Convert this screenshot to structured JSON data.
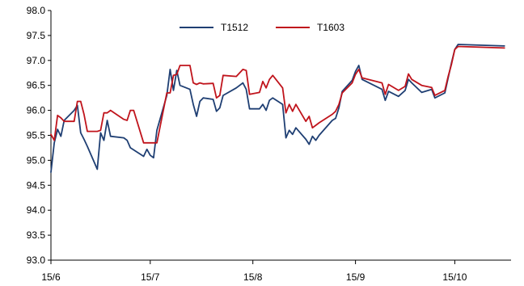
{
  "chart_data": {
    "type": "line",
    "title": "",
    "xlabel": "",
    "ylabel": "",
    "ylim": [
      93.0,
      98.0
    ],
    "yticks": [
      "93.0",
      "93.5",
      "94.0",
      "94.5",
      "95.0",
      "95.5",
      "96.0",
      "96.5",
      "97.0",
      "97.5",
      "98.0"
    ],
    "xlim": [
      "2015-06-01",
      "2015-10-18"
    ],
    "xticks": [
      {
        "date": "2015-06-01",
        "label": "15/6"
      },
      {
        "date": "2015-07-01",
        "label": "15/7"
      },
      {
        "date": "2015-08-01",
        "label": "15/8"
      },
      {
        "date": "2015-09-01",
        "label": "15/9"
      },
      {
        "date": "2015-10-01",
        "label": "15/10"
      }
    ],
    "grid": false,
    "legend": "top-center",
    "series": [
      {
        "name": "T1512",
        "color": "#1F3F73",
        "points": [
          [
            "2015-06-01",
            94.76
          ],
          [
            "2015-06-02",
            95.35
          ],
          [
            "2015-06-03",
            95.62
          ],
          [
            "2015-06-04",
            95.48
          ],
          [
            "2015-06-05",
            95.8
          ],
          [
            "2015-06-08",
            96.0
          ],
          [
            "2015-06-09",
            96.1
          ],
          [
            "2015-06-10",
            95.55
          ],
          [
            "2015-06-11",
            95.42
          ],
          [
            "2015-06-12",
            95.28
          ],
          [
            "2015-06-15",
            94.82
          ],
          [
            "2015-06-16",
            95.55
          ],
          [
            "2015-06-17",
            95.4
          ],
          [
            "2015-06-18",
            95.8
          ],
          [
            "2015-06-19",
            95.48
          ],
          [
            "2015-06-23",
            95.45
          ],
          [
            "2015-06-24",
            95.4
          ],
          [
            "2015-06-25",
            95.25
          ],
          [
            "2015-06-29",
            95.08
          ],
          [
            "2015-06-30",
            95.22
          ],
          [
            "2015-07-01",
            95.1
          ],
          [
            "2015-07-02",
            95.05
          ],
          [
            "2015-07-03",
            95.6
          ],
          [
            "2015-07-06",
            96.3
          ],
          [
            "2015-07-07",
            96.82
          ],
          [
            "2015-07-08",
            96.4
          ],
          [
            "2015-07-09",
            96.8
          ],
          [
            "2015-07-10",
            96.5
          ],
          [
            "2015-07-13",
            96.42
          ],
          [
            "2015-07-14",
            96.12
          ],
          [
            "2015-07-15",
            95.88
          ],
          [
            "2015-07-16",
            96.18
          ],
          [
            "2015-07-17",
            96.25
          ],
          [
            "2015-07-20",
            96.22
          ],
          [
            "2015-07-21",
            95.98
          ],
          [
            "2015-07-22",
            96.05
          ],
          [
            "2015-07-23",
            96.3
          ],
          [
            "2015-07-27",
            96.45
          ],
          [
            "2015-07-29",
            96.55
          ],
          [
            "2015-07-30",
            96.42
          ],
          [
            "2015-07-31",
            96.03
          ],
          [
            "2015-08-03",
            96.03
          ],
          [
            "2015-08-04",
            96.12
          ],
          [
            "2015-08-05",
            96.0
          ],
          [
            "2015-08-06",
            96.2
          ],
          [
            "2015-08-07",
            96.25
          ],
          [
            "2015-08-10",
            96.12
          ],
          [
            "2015-08-11",
            95.45
          ],
          [
            "2015-08-12",
            95.6
          ],
          [
            "2015-08-13",
            95.52
          ],
          [
            "2015-08-14",
            95.65
          ],
          [
            "2015-08-17",
            95.42
          ],
          [
            "2015-08-18",
            95.32
          ],
          [
            "2015-08-19",
            95.48
          ],
          [
            "2015-08-20",
            95.4
          ],
          [
            "2015-08-21",
            95.5
          ],
          [
            "2015-08-25",
            95.8
          ],
          [
            "2015-08-26",
            95.84
          ],
          [
            "2015-08-27",
            96.05
          ],
          [
            "2015-08-28",
            96.38
          ],
          [
            "2015-08-31",
            96.6
          ],
          [
            "2015-09-01",
            96.78
          ],
          [
            "2015-09-02",
            96.9
          ],
          [
            "2015-09-03",
            96.62
          ],
          [
            "2015-09-09",
            96.42
          ],
          [
            "2015-09-10",
            96.2
          ],
          [
            "2015-09-11",
            96.38
          ],
          [
            "2015-09-14",
            96.28
          ],
          [
            "2015-09-16",
            96.4
          ],
          [
            "2015-09-17",
            96.62
          ],
          [
            "2015-09-18",
            96.55
          ],
          [
            "2015-09-21",
            96.36
          ],
          [
            "2015-09-24",
            96.42
          ],
          [
            "2015-09-25",
            96.25
          ],
          [
            "2015-09-28",
            96.35
          ],
          [
            "2015-09-29",
            96.65
          ],
          [
            "2015-09-30",
            96.95
          ],
          [
            "2015-10-01",
            97.22
          ],
          [
            "2015-10-02",
            97.32
          ],
          [
            "2015-10-16",
            97.29
          ]
        ]
      },
      {
        "name": "T1603",
        "color": "#C0141C",
        "points": [
          [
            "2015-06-01",
            95.52
          ],
          [
            "2015-06-02",
            95.4
          ],
          [
            "2015-06-03",
            95.9
          ],
          [
            "2015-06-04",
            95.85
          ],
          [
            "2015-06-05",
            95.78
          ],
          [
            "2015-06-08",
            95.78
          ],
          [
            "2015-06-09",
            96.18
          ],
          [
            "2015-06-10",
            96.18
          ],
          [
            "2015-06-11",
            95.92
          ],
          [
            "2015-06-12",
            95.58
          ],
          [
            "2015-06-15",
            95.58
          ],
          [
            "2015-06-16",
            95.6
          ],
          [
            "2015-06-17",
            95.95
          ],
          [
            "2015-06-18",
            95.95
          ],
          [
            "2015-06-19",
            96.0
          ],
          [
            "2015-06-23",
            95.82
          ],
          [
            "2015-06-24",
            95.8
          ],
          [
            "2015-06-25",
            96.0
          ],
          [
            "2015-06-26",
            96.0
          ],
          [
            "2015-06-29",
            95.35
          ],
          [
            "2015-07-01",
            95.35
          ],
          [
            "2015-07-03",
            95.35
          ],
          [
            "2015-07-06",
            96.35
          ],
          [
            "2015-07-07",
            96.35
          ],
          [
            "2015-07-08",
            96.7
          ],
          [
            "2015-07-09",
            96.72
          ],
          [
            "2015-07-10",
            96.9
          ],
          [
            "2015-07-13",
            96.9
          ],
          [
            "2015-07-14",
            96.55
          ],
          [
            "2015-07-15",
            96.52
          ],
          [
            "2015-07-16",
            96.55
          ],
          [
            "2015-07-17",
            96.53
          ],
          [
            "2015-07-20",
            96.54
          ],
          [
            "2015-07-21",
            96.25
          ],
          [
            "2015-07-22",
            96.3
          ],
          [
            "2015-07-23",
            96.7
          ],
          [
            "2015-07-27",
            96.68
          ],
          [
            "2015-07-29",
            96.82
          ],
          [
            "2015-07-30",
            96.8
          ],
          [
            "2015-07-31",
            96.32
          ],
          [
            "2015-08-03",
            96.36
          ],
          [
            "2015-08-04",
            96.58
          ],
          [
            "2015-08-05",
            96.45
          ],
          [
            "2015-08-06",
            96.62
          ],
          [
            "2015-08-07",
            96.7
          ],
          [
            "2015-08-10",
            96.45
          ],
          [
            "2015-08-11",
            95.95
          ],
          [
            "2015-08-12",
            96.12
          ],
          [
            "2015-08-13",
            95.98
          ],
          [
            "2015-08-14",
            96.12
          ],
          [
            "2015-08-17",
            95.78
          ],
          [
            "2015-08-18",
            95.88
          ],
          [
            "2015-08-19",
            95.65
          ],
          [
            "2015-08-20",
            95.7
          ],
          [
            "2015-08-21",
            95.75
          ],
          [
            "2015-08-25",
            95.92
          ],
          [
            "2015-08-26",
            95.98
          ],
          [
            "2015-08-27",
            96.12
          ],
          [
            "2015-08-28",
            96.35
          ],
          [
            "2015-08-31",
            96.55
          ],
          [
            "2015-09-01",
            96.72
          ],
          [
            "2015-09-02",
            96.82
          ],
          [
            "2015-09-03",
            96.65
          ],
          [
            "2015-09-09",
            96.55
          ],
          [
            "2015-09-10",
            96.32
          ],
          [
            "2015-09-11",
            96.52
          ],
          [
            "2015-09-14",
            96.4
          ],
          [
            "2015-09-16",
            96.48
          ],
          [
            "2015-09-17",
            96.73
          ],
          [
            "2015-09-18",
            96.62
          ],
          [
            "2015-09-21",
            96.5
          ],
          [
            "2015-09-24",
            96.46
          ],
          [
            "2015-09-25",
            96.3
          ],
          [
            "2015-09-28",
            96.4
          ],
          [
            "2015-09-29",
            96.68
          ],
          [
            "2015-09-30",
            96.92
          ],
          [
            "2015-10-01",
            97.22
          ],
          [
            "2015-10-02",
            97.28
          ],
          [
            "2015-10-16",
            97.25
          ]
        ]
      }
    ]
  }
}
